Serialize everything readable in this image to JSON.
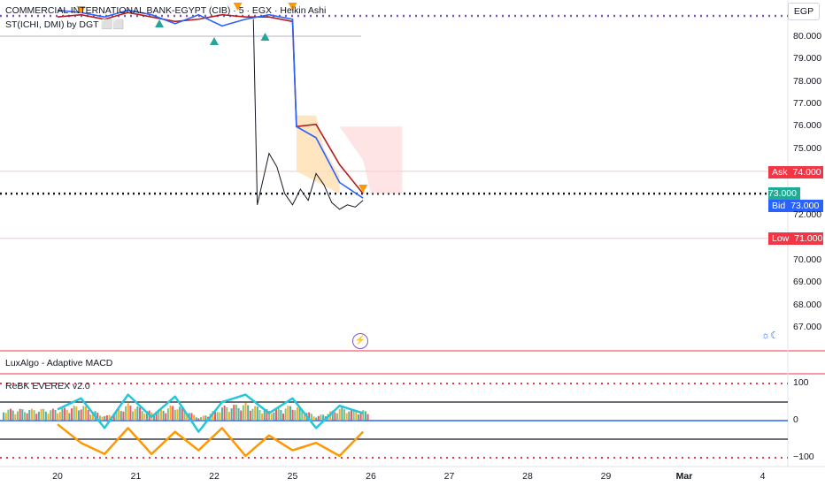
{
  "header": {
    "symbol_line": "COMMERCIAL INTERNATIONAL BANK-EGYPT (CIB) · 5 · EGX · Heikin Ashi",
    "indicator_line": "ST(ICHI, DMI) by DGT ⬜⬜",
    "currency": "EGP"
  },
  "panes": {
    "macd_title": "LuxAlgo - Adaptive MACD",
    "osc_title": "ReBK EVEREX v2.0"
  },
  "price_tags": {
    "ask": {
      "label": "Ask",
      "value": "74.000",
      "color": "#f23645"
    },
    "last": {
      "value": "73.000",
      "color": "#22ab94"
    },
    "bid": {
      "label": "Bid",
      "value": "73.000",
      "color": "#2962ff"
    },
    "low": {
      "label": "Low",
      "value": "71.000",
      "color": "#f23645"
    }
  },
  "icons": {
    "alert": "lightning-icon",
    "session": "night-session-icon"
  },
  "chart_data": [
    {
      "type": "line",
      "title": "COMMERCIAL INTERNATIONAL BANK-EGYPT (CIB) · 5 · EGX · Heikin Ashi",
      "xlabel": "",
      "ylabel": "",
      "x_ticks": [
        "20",
        "21",
        "22",
        "25",
        "26",
        "27",
        "28",
        "29",
        "Mar",
        "4"
      ],
      "y_ticks": [
        80.0,
        79.0,
        78.0,
        77.0,
        76.0,
        75.0,
        74.0,
        73.0,
        72.0,
        71.0,
        70.0,
        69.0,
        68.0,
        67.0
      ],
      "ylim": [
        66.2,
        81.3
      ],
      "levels": {
        "ask": 74.0,
        "last": 73.0,
        "bid": 73.0,
        "low": 71.0
      },
      "series": [
        {
          "name": "",
          "color": "#b71c1c",
          "x": [
            0,
            0.3,
            0.6,
            0.9,
            1.2,
            1.5,
            1.8,
            2.1,
            2.4,
            2.7,
            3.0,
            3.05,
            3.3,
            3.6,
            3.9
          ],
          "y": [
            80.9,
            81.0,
            80.8,
            81.1,
            80.9,
            80.7,
            80.8,
            81.0,
            80.9,
            80.9,
            80.7,
            76.0,
            76.1,
            74.3,
            73.0
          ]
        },
        {
          "name": "",
          "color": "#2962ff",
          "x": [
            0,
            0.3,
            0.6,
            0.9,
            1.2,
            1.5,
            1.8,
            2.1,
            2.4,
            2.7,
            3.0,
            3.05,
            3.3,
            3.6,
            3.9
          ],
          "y": [
            81.2,
            81.1,
            80.9,
            81.2,
            81.0,
            80.6,
            81.0,
            80.5,
            80.8,
            81.0,
            80.8,
            76.0,
            75.5,
            73.5,
            72.8
          ]
        },
        {
          "name": "",
          "color": "#131722",
          "x": [
            2.5,
            2.55,
            2.7,
            2.8,
            2.9,
            3.0,
            3.1,
            3.2,
            3.3,
            3.4,
            3.5,
            3.6,
            3.7,
            3.8,
            3.9
          ],
          "y": [
            80.8,
            72.5,
            74.8,
            74.2,
            73.0,
            72.5,
            73.2,
            72.7,
            73.9,
            73.4,
            72.6,
            72.3,
            72.5,
            72.4,
            72.7
          ]
        }
      ]
    },
    {
      "type": "bar",
      "title": "ReBK EVEREX v2.0",
      "ylim": [
        -110,
        110
      ],
      "y_ticks": [
        100,
        0,
        -100
      ],
      "levels": [
        100,
        50,
        0,
        -50,
        -100
      ],
      "series": [
        {
          "name": "",
          "color": "#26c6da",
          "x": [
            0,
            0.3,
            0.6,
            0.9,
            1.2,
            1.5,
            1.8,
            2.1,
            2.4,
            2.7,
            3.0,
            3.3,
            3.6,
            3.9
          ],
          "y": [
            30,
            60,
            -20,
            70,
            10,
            65,
            -30,
            50,
            70,
            20,
            60,
            -20,
            40,
            20
          ]
        },
        {
          "name": "",
          "color": "#ff9800",
          "x": [
            0,
            0.3,
            0.6,
            0.9,
            1.2,
            1.5,
            1.8,
            2.1,
            2.4,
            2.7,
            3.0,
            3.3,
            3.6,
            3.9
          ],
          "y": [
            -10,
            -60,
            -90,
            -20,
            -90,
            -30,
            -80,
            -20,
            -95,
            -40,
            -80,
            -60,
            -95,
            -30
          ]
        }
      ]
    }
  ]
}
